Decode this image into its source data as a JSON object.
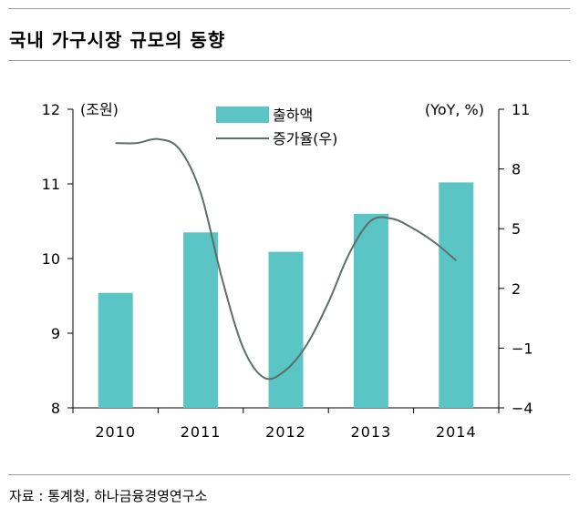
{
  "header": {
    "title": "국내 가구시장 규모의 동향"
  },
  "footer": {
    "source": "자료 : 통계청, 하나금융경영연구소"
  },
  "chart_data": {
    "type": "bar+line",
    "title": "국내 가구시장 규모의 동향",
    "categories": [
      "2010",
      "2011",
      "2012",
      "2013",
      "2014"
    ],
    "left_axis": {
      "unit_label": "(조원)",
      "ticks": [
        "8",
        "9",
        "10",
        "11",
        "12"
      ],
      "range": [
        8,
        12
      ]
    },
    "right_axis": {
      "unit_label": "(YoY, %)",
      "ticks": [
        "-4",
        "-1",
        "2",
        "5",
        "8",
        "11"
      ],
      "range": [
        -4,
        11
      ]
    },
    "legend": {
      "placement": "top-center",
      "bar_label": "출하액",
      "line_label": "증가율(우)"
    },
    "series": [
      {
        "name": "출하액",
        "type": "bar",
        "axis": "left",
        "color": "#5bc4c5",
        "values": [
          9.54,
          10.35,
          10.09,
          10.6,
          11.02
        ]
      },
      {
        "name": "증가율(우)",
        "type": "line",
        "axis": "right",
        "color": "#5f6d6b",
        "x": [
          0,
          0.25,
          0.5,
          0.75,
          1.0,
          1.25,
          1.5,
          1.75,
          2.0,
          2.25,
          2.5,
          2.75,
          3.0,
          3.25,
          3.5,
          3.75,
          4.0
        ],
        "values": [
          9.3,
          9.3,
          9.5,
          9.0,
          6.8,
          2.5,
          -1.0,
          -2.5,
          -2.1,
          -0.8,
          1.3,
          3.8,
          5.4,
          5.5,
          5.0,
          4.3,
          3.4
        ]
      }
    ]
  }
}
